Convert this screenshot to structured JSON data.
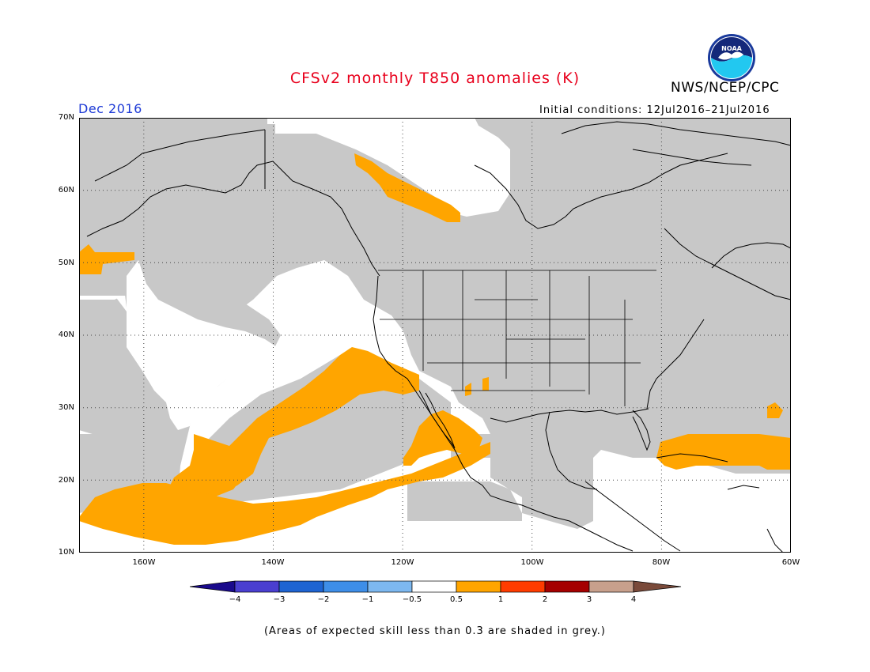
{
  "header": {
    "title": "CFSv2 monthly T850 anomalies (K)",
    "valid_month": "Dec 2016",
    "agency": "NWS/NCEP/CPC",
    "initial_conditions": "Initial conditions: 12Jul2016–21Jul2016",
    "logo_text": "NOAA"
  },
  "map": {
    "lat_labels": [
      "70N",
      "60N",
      "50N",
      "40N",
      "30N",
      "20N",
      "10N"
    ],
    "lon_labels": [
      "160W",
      "140W",
      "120W",
      "100W",
      "80W",
      "60W"
    ],
    "lat_range": [
      10,
      70
    ],
    "lon_range": [
      -170,
      -60
    ],
    "gridlines": "dotted",
    "fill_colors": {
      "low_skill_grey": "#c8c8c8",
      "anomaly_0_5_to_1": "#ffa500",
      "near_normal": "#ffffff"
    }
  },
  "colorbar": {
    "labels": [
      "−4",
      "−3",
      "−2",
      "−1",
      "−0.5",
      "0.5",
      "1",
      "2",
      "3",
      "4"
    ],
    "colors": [
      "#1a0a8c",
      "#4a3fd0",
      "#1e64d2",
      "#3e8ee8",
      "#7db8f0",
      "#ffffff",
      "#ffa500",
      "#ff3c00",
      "#a50000",
      "#c8a08c",
      "#7a4a3a"
    ]
  },
  "footer": {
    "skill_note": "(Areas of expected skill less than 0.3 are shaded in grey.)"
  }
}
